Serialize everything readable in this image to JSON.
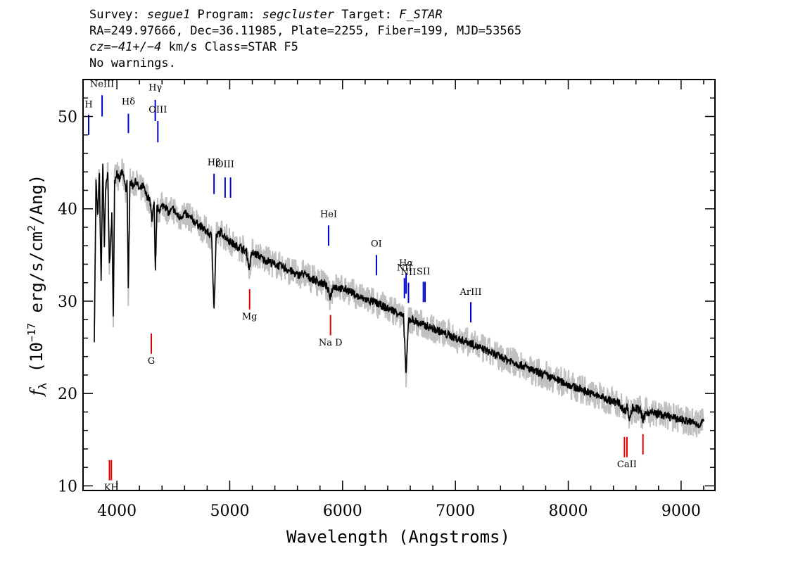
{
  "header": {
    "line1": {
      "survey_label": "Survey: ",
      "survey": "segue1",
      "program_label": " Program: ",
      "program": "segcluster",
      "target_label": " Target: ",
      "target": "F_STAR"
    },
    "line2": "RA=249.97666, Dec=36.11985, Plate=2255, Fiber=199, MJD=53565",
    "line3": {
      "cz": "cz=−41+/−4",
      "rest": " km/s Class=STAR F5"
    },
    "line4": "No warnings."
  },
  "colors": {
    "spectrum": "#000000",
    "error_band": "#c0c0c0",
    "emission": "#0000d0",
    "absorption": "#e00000",
    "frame": "#000000"
  },
  "chart_data": {
    "type": "line",
    "title": "",
    "xlabel": "Wavelength (Angstroms)",
    "ylabel": "f_λ (10^-17 erg/s/cm^2/Ang)",
    "xlim": [
      3700,
      9300
    ],
    "ylim": [
      9.5,
      54
    ],
    "xticks": [
      4000,
      5000,
      6000,
      7000,
      8000,
      9000
    ],
    "yticks": [
      10,
      20,
      30,
      40,
      50
    ],
    "xtick_labels": [
      "4000",
      "5000",
      "6000",
      "7000",
      "8000",
      "9000"
    ],
    "ytick_labels": [
      "10",
      "20",
      "30",
      "40",
      "50"
    ],
    "ylabel_parts": {
      "f": "f",
      "lambda": "λ",
      "pre": " (10",
      "exp1": "−17",
      "mid": " erg/s/cm",
      "exp2": "2",
      "post": "/Ang)"
    },
    "series": [
      {
        "points": [
          [
            3800,
            26
          ],
          [
            3815,
            43
          ],
          [
            3830,
            39
          ],
          [
            3845,
            44
          ],
          [
            3860,
            32
          ],
          [
            3875,
            45
          ],
          [
            3889,
            36
          ],
          [
            3900,
            42
          ],
          [
            3920,
            44
          ],
          [
            3933,
            34
          ],
          [
            3945,
            36
          ],
          [
            3955,
            40
          ],
          [
            3968,
            28
          ],
          [
            3980,
            43
          ],
          [
            4000,
            44
          ],
          [
            4020,
            43
          ],
          [
            4040,
            44
          ],
          [
            4060,
            43.5
          ],
          [
            4080,
            42
          ],
          [
            4090,
            43
          ],
          [
            4101,
            31
          ],
          [
            4115,
            43
          ],
          [
            4140,
            42.5
          ],
          [
            4170,
            43
          ],
          [
            4200,
            42
          ],
          [
            4230,
            42.5
          ],
          [
            4260,
            41.5
          ],
          [
            4290,
            41
          ],
          [
            4310,
            39
          ],
          [
            4330,
            40.5
          ],
          [
            4341,
            33
          ],
          [
            4355,
            40
          ],
          [
            4380,
            40
          ],
          [
            4420,
            40.5
          ],
          [
            4460,
            39.5
          ],
          [
            4500,
            40
          ],
          [
            4550,
            39
          ],
          [
            4600,
            39.5
          ],
          [
            4650,
            39
          ],
          [
            4700,
            38.5
          ],
          [
            4750,
            38
          ],
          [
            4800,
            37.5
          ],
          [
            4840,
            37
          ],
          [
            4861,
            29
          ],
          [
            4880,
            37
          ],
          [
            4920,
            37.5
          ],
          [
            4960,
            37
          ],
          [
            5000,
            36.5
          ],
          [
            5050,
            36
          ],
          [
            5100,
            35.8
          ],
          [
            5150,
            35.3
          ],
          [
            5172,
            33.5
          ],
          [
            5195,
            35.2
          ],
          [
            5250,
            35
          ],
          [
            5300,
            34.5
          ],
          [
            5350,
            34.3
          ],
          [
            5400,
            34
          ],
          [
            5450,
            33.8
          ],
          [
            5500,
            33.5
          ],
          [
            5550,
            33.2
          ],
          [
            5600,
            32.8
          ],
          [
            5650,
            33
          ],
          [
            5700,
            32.6
          ],
          [
            5750,
            32.3
          ],
          [
            5800,
            32
          ],
          [
            5850,
            31.8
          ],
          [
            5890,
            30.5
          ],
          [
            5920,
            31.7
          ],
          [
            5950,
            31.5
          ],
          [
            6000,
            31.3
          ],
          [
            6050,
            31.2
          ],
          [
            6100,
            30.8
          ],
          [
            6150,
            30.4
          ],
          [
            6200,
            30.2
          ],
          [
            6250,
            30
          ],
          [
            6300,
            29.8
          ],
          [
            6350,
            29.5
          ],
          [
            6400,
            29.2
          ],
          [
            6450,
            29
          ],
          [
            6500,
            28.7
          ],
          [
            6540,
            28.2
          ],
          [
            6563,
            22
          ],
          [
            6585,
            28
          ],
          [
            6620,
            28
          ],
          [
            6660,
            27.7
          ],
          [
            6700,
            27.5
          ],
          [
            6750,
            27.3
          ],
          [
            6800,
            27
          ],
          [
            6850,
            26.8
          ],
          [
            6900,
            26.5
          ],
          [
            6950,
            26.3
          ],
          [
            7000,
            26
          ],
          [
            7050,
            25.8
          ],
          [
            7100,
            25.6
          ],
          [
            7150,
            25.4
          ],
          [
            7200,
            25
          ],
          [
            7250,
            24.8
          ],
          [
            7300,
            24.5
          ],
          [
            7350,
            24.2
          ],
          [
            7400,
            24
          ],
          [
            7450,
            23.7
          ],
          [
            7500,
            23.5
          ],
          [
            7550,
            23.2
          ],
          [
            7600,
            23
          ],
          [
            7650,
            22.7
          ],
          [
            7700,
            22.4
          ],
          [
            7750,
            22.2
          ],
          [
            7800,
            22
          ],
          [
            7850,
            21.7
          ],
          [
            7900,
            21.5
          ],
          [
            7950,
            21.2
          ],
          [
            8000,
            21
          ],
          [
            8050,
            20.7
          ],
          [
            8100,
            20.5
          ],
          [
            8150,
            20.3
          ],
          [
            8200,
            20
          ],
          [
            8250,
            19.8
          ],
          [
            8300,
            19.6
          ],
          [
            8350,
            19.3
          ],
          [
            8400,
            19.1
          ],
          [
            8450,
            19
          ],
          [
            8498,
            18
          ],
          [
            8520,
            18.7
          ],
          [
            8542,
            17.2
          ],
          [
            8570,
            18.5
          ],
          [
            8600,
            18.4
          ],
          [
            8640,
            18.2
          ],
          [
            8662,
            17
          ],
          [
            8690,
            18
          ],
          [
            8750,
            17.9
          ],
          [
            8800,
            17.8
          ],
          [
            8850,
            17.6
          ],
          [
            8900,
            17.5
          ],
          [
            8950,
            17.3
          ],
          [
            9000,
            17.2
          ],
          [
            9050,
            17
          ],
          [
            9100,
            16.9
          ],
          [
            9150,
            16.6
          ],
          [
            9200,
            17
          ]
        ]
      }
    ],
    "spectral_lines": [
      {
        "label": "NeIII",
        "wavelength": 3869,
        "kind": "emission",
        "y_top": 52.3,
        "y_bottom": 50,
        "label_y": 53.2
      },
      {
        "label": "H",
        "wavelength": 3750,
        "kind": "emission",
        "y_top": 50.2,
        "y_bottom": 48,
        "label_y": 51
      },
      {
        "label": "Hδ",
        "wavelength": 4102,
        "kind": "emission",
        "y_top": 50.3,
        "y_bottom": 48.2,
        "label_y": 51.3
      },
      {
        "label": "Hγ",
        "wavelength": 4340,
        "kind": "emission",
        "y_top": 51.8,
        "y_bottom": 49.5,
        "label_y": 52.8
      },
      {
        "label": "OIII",
        "wavelength": 4363,
        "kind": "emission",
        "y_top": 49.5,
        "y_bottom": 47.2,
        "label_y": 50.4
      },
      {
        "label": "Hβ",
        "wavelength": 4861,
        "kind": "emission",
        "y_top": 43.8,
        "y_bottom": 41.6,
        "label_y": 44.7
      },
      {
        "label": "OIII",
        "wavelength": 4959,
        "kind": "emission",
        "y_top": 43.4,
        "y_bottom": 41.2,
        "label_y": 44.5
      },
      {
        "label": "",
        "wavelength": 5007,
        "kind": "emission",
        "y_top": 43.4,
        "y_bottom": 41.2,
        "label_y": 44.5
      },
      {
        "label": "HeI",
        "wavelength": 5876,
        "kind": "emission",
        "y_top": 38.2,
        "y_bottom": 36,
        "label_y": 39.1
      },
      {
        "label": "OI",
        "wavelength": 6300,
        "kind": "emission",
        "y_top": 35,
        "y_bottom": 32.8,
        "label_y": 35.9
      },
      {
        "label": "NII",
        "wavelength": 6548,
        "kind": "emission",
        "y_top": 32.5,
        "y_bottom": 30.3,
        "label_y": 33.3
      },
      {
        "label": "Hα",
        "wavelength": 6563,
        "kind": "emission",
        "y_top": 33,
        "y_bottom": 30.8,
        "label_y": 33.8
      },
      {
        "label": "NII",
        "wavelength": 6584,
        "kind": "emission",
        "y_top": 32,
        "y_bottom": 29.8,
        "label_y": 32.8
      },
      {
        "label": "SII",
        "wavelength": 6716,
        "kind": "emission",
        "y_top": 32.1,
        "y_bottom": 29.9,
        "label_y": 32.9
      },
      {
        "label": "",
        "wavelength": 6731,
        "kind": "emission",
        "y_top": 32.1,
        "y_bottom": 29.9,
        "label_y": 32.9
      },
      {
        "label": "ArIII",
        "wavelength": 7136,
        "kind": "emission",
        "y_top": 29.9,
        "y_bottom": 27.7,
        "label_y": 30.7
      },
      {
        "label": "G",
        "wavelength": 4305,
        "kind": "absorption",
        "y_top": 26.5,
        "y_bottom": 24.3,
        "label_y": 23.2
      },
      {
        "label": "Mg",
        "wavelength": 5176,
        "kind": "absorption",
        "y_top": 31.3,
        "y_bottom": 29.1,
        "label_y": 28
      },
      {
        "label": "Na D",
        "wavelength": 5893,
        "kind": "absorption",
        "y_top": 28.5,
        "y_bottom": 26.3,
        "label_y": 25.2
      },
      {
        "label": "KH",
        "wavelength": 3951,
        "kind": "absorption",
        "y_top": 12.8,
        "y_bottom": 10.6,
        "label_y": 9.5
      },
      {
        "label": "",
        "wavelength": 3934,
        "kind": "absorption",
        "y_top": 12.8,
        "y_bottom": 10.6,
        "label_y": 9.5
      },
      {
        "label": "CaII",
        "wavelength": 8520,
        "kind": "absorption",
        "y_top": 15.3,
        "y_bottom": 13.1,
        "label_y": 12
      },
      {
        "label": "",
        "wavelength": 8498,
        "kind": "absorption",
        "y_top": 15.3,
        "y_bottom": 13.1,
        "label_y": 12
      },
      {
        "label": "",
        "wavelength": 8662,
        "kind": "absorption",
        "y_top": 15.6,
        "y_bottom": 13.4,
        "label_y": 12
      }
    ]
  }
}
